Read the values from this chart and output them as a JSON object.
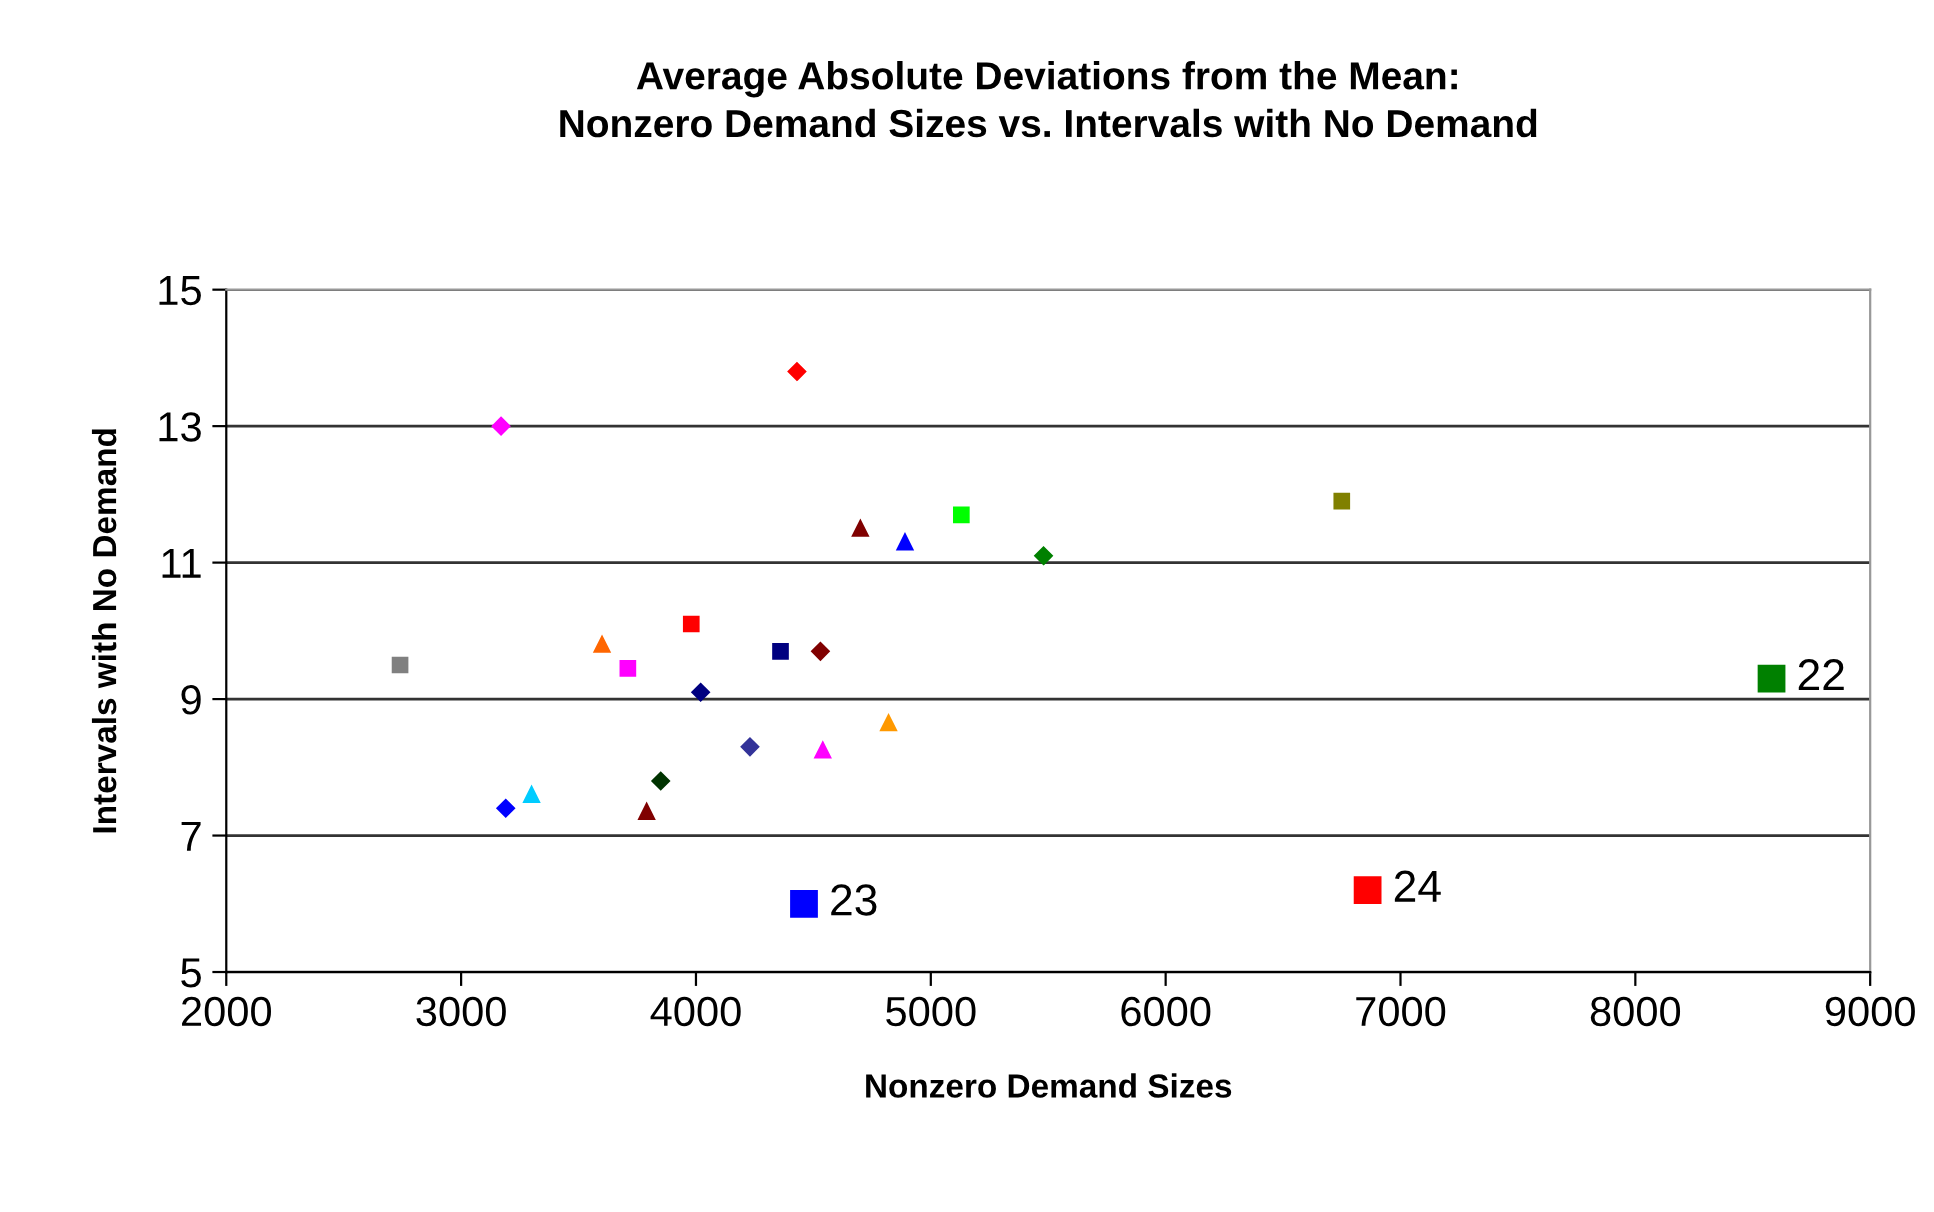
{
  "chart_data": {
    "type": "scatter",
    "title": "Average Absolute Deviations from the Mean:\nNonzero Demand Sizes vs. Intervals with No Demand",
    "xlabel": "Nonzero Demand Sizes",
    "ylabel": "Intervals with No Demand",
    "xlim": [
      2000,
      9000
    ],
    "xticks": [
      2000,
      3000,
      4000,
      5000,
      6000,
      7000,
      8000,
      9000
    ],
    "ylim": [
      5,
      15
    ],
    "yticks": [
      5,
      7,
      9,
      11,
      13,
      15
    ],
    "grid": "y",
    "series": [
      {
        "x": [
          2740
        ],
        "values": [
          9.5
        ],
        "color": "#808080",
        "marker": "square"
      },
      {
        "x": [
          3170
        ],
        "values": [
          13.0
        ],
        "color": "#ff00ff",
        "marker": "diamond"
      },
      {
        "x": [
          3190
        ],
        "values": [
          7.4
        ],
        "color": "#0000ff",
        "marker": "diamond"
      },
      {
        "x": [
          3300
        ],
        "values": [
          7.6
        ],
        "color": "#00ccff",
        "marker": "triangle"
      },
      {
        "x": [
          3600
        ],
        "values": [
          9.8
        ],
        "color": "#ff6600",
        "marker": "triangle"
      },
      {
        "x": [
          3710
        ],
        "values": [
          9.45
        ],
        "color": "#ff00ff",
        "marker": "square"
      },
      {
        "x": [
          3790
        ],
        "values": [
          7.35
        ],
        "color": "#800000",
        "marker": "triangle"
      },
      {
        "x": [
          3850
        ],
        "values": [
          7.8
        ],
        "color": "#003300",
        "marker": "diamond"
      },
      {
        "x": [
          3980
        ],
        "values": [
          10.1
        ],
        "color": "#ff0000",
        "marker": "square"
      },
      {
        "x": [
          4020
        ],
        "values": [
          9.1
        ],
        "color": "#000080",
        "marker": "diamond"
      },
      {
        "x": [
          4230
        ],
        "values": [
          8.3
        ],
        "color": "#333399",
        "marker": "diamond"
      },
      {
        "x": [
          4360
        ],
        "values": [
          9.7
        ],
        "color": "#000080",
        "marker": "square"
      },
      {
        "x": [
          4430
        ],
        "values": [
          13.8
        ],
        "color": "#ff0000",
        "marker": "diamond"
      },
      {
        "x": [
          4530
        ],
        "values": [
          9.7
        ],
        "color": "#800000",
        "marker": "diamond"
      },
      {
        "x": [
          4540
        ],
        "values": [
          8.25
        ],
        "color": "#ff00ff",
        "marker": "triangle"
      },
      {
        "x": [
          4700
        ],
        "values": [
          11.5
        ],
        "color": "#800000",
        "marker": "triangle"
      },
      {
        "x": [
          4820
        ],
        "values": [
          8.65
        ],
        "color": "#ff9900",
        "marker": "triangle"
      },
      {
        "x": [
          4890
        ],
        "values": [
          11.3
        ],
        "color": "#0000ff",
        "marker": "triangle"
      },
      {
        "x": [
          5130
        ],
        "values": [
          11.7
        ],
        "color": "#00ff00",
        "marker": "square"
      },
      {
        "x": [
          5480
        ],
        "values": [
          11.1
        ],
        "color": "#008000",
        "marker": "diamond"
      },
      {
        "x": [
          6750
        ],
        "values": [
          11.9
        ],
        "color": "#808000",
        "marker": "square"
      },
      {
        "x": [
          8580
        ],
        "values": [
          9.3
        ],
        "color": "#008000",
        "marker": "square"
      },
      {
        "x": [
          4460
        ],
        "values": [
          6.0
        ],
        "color": "#0000ff",
        "marker": "square"
      },
      {
        "x": [
          6860
        ],
        "values": [
          6.2
        ],
        "color": "#ff0000",
        "marker": "square"
      }
    ],
    "annotations": [
      {
        "text": "22",
        "x": 8580,
        "y": 9.3
      },
      {
        "text": "23",
        "x": 4460,
        "y": 6.0
      },
      {
        "text": "24",
        "x": 6860,
        "y": 6.2
      }
    ]
  }
}
